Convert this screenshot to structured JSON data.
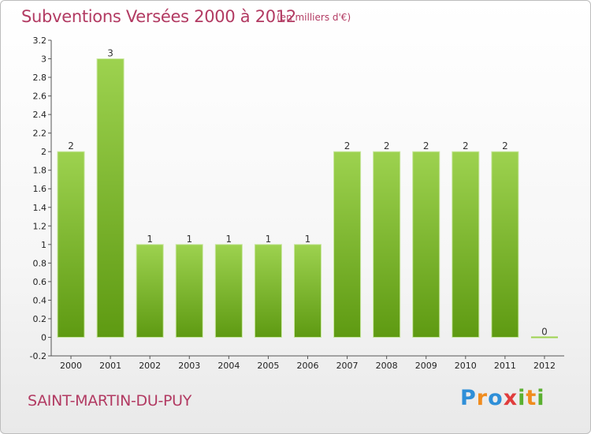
{
  "header": {
    "title": "Subventions Versées 2000 à 2012",
    "subtitle": "(en milliers d'€)"
  },
  "footer": {
    "place": "SAINT-MARTIN-DU-PUY",
    "logo_text": "Proxiti"
  },
  "colors": {
    "bar_top": "#9dd24f",
    "bar_bottom": "#5e9a12",
    "title": "#b23a62"
  },
  "chart_data": {
    "type": "bar",
    "title": "Subventions Versées 2000 à 2012",
    "subtitle": "(en milliers d'€)",
    "xlabel": "",
    "ylabel": "",
    "categories": [
      "2000",
      "2001",
      "2002",
      "2003",
      "2004",
      "2005",
      "2006",
      "2007",
      "2008",
      "2009",
      "2010",
      "2011",
      "2012"
    ],
    "values": [
      2,
      3,
      1,
      1,
      1,
      1,
      1,
      2,
      2,
      2,
      2,
      2,
      0
    ],
    "data_labels": [
      "2",
      "3",
      "1",
      "1",
      "1",
      "1",
      "1",
      "2",
      "2",
      "2",
      "2",
      "2",
      "0"
    ],
    "ylim": [
      -0.2,
      3.2
    ],
    "yticks": [
      "-0.2",
      "0",
      "0.2",
      "0.4",
      "0.6",
      "0.8",
      "1",
      "1.2",
      "1.4",
      "1.6",
      "1.8",
      "2",
      "2.2",
      "2.4",
      "2.6",
      "2.8",
      "3",
      "3.2"
    ],
    "grid": false,
    "legend": "none"
  }
}
